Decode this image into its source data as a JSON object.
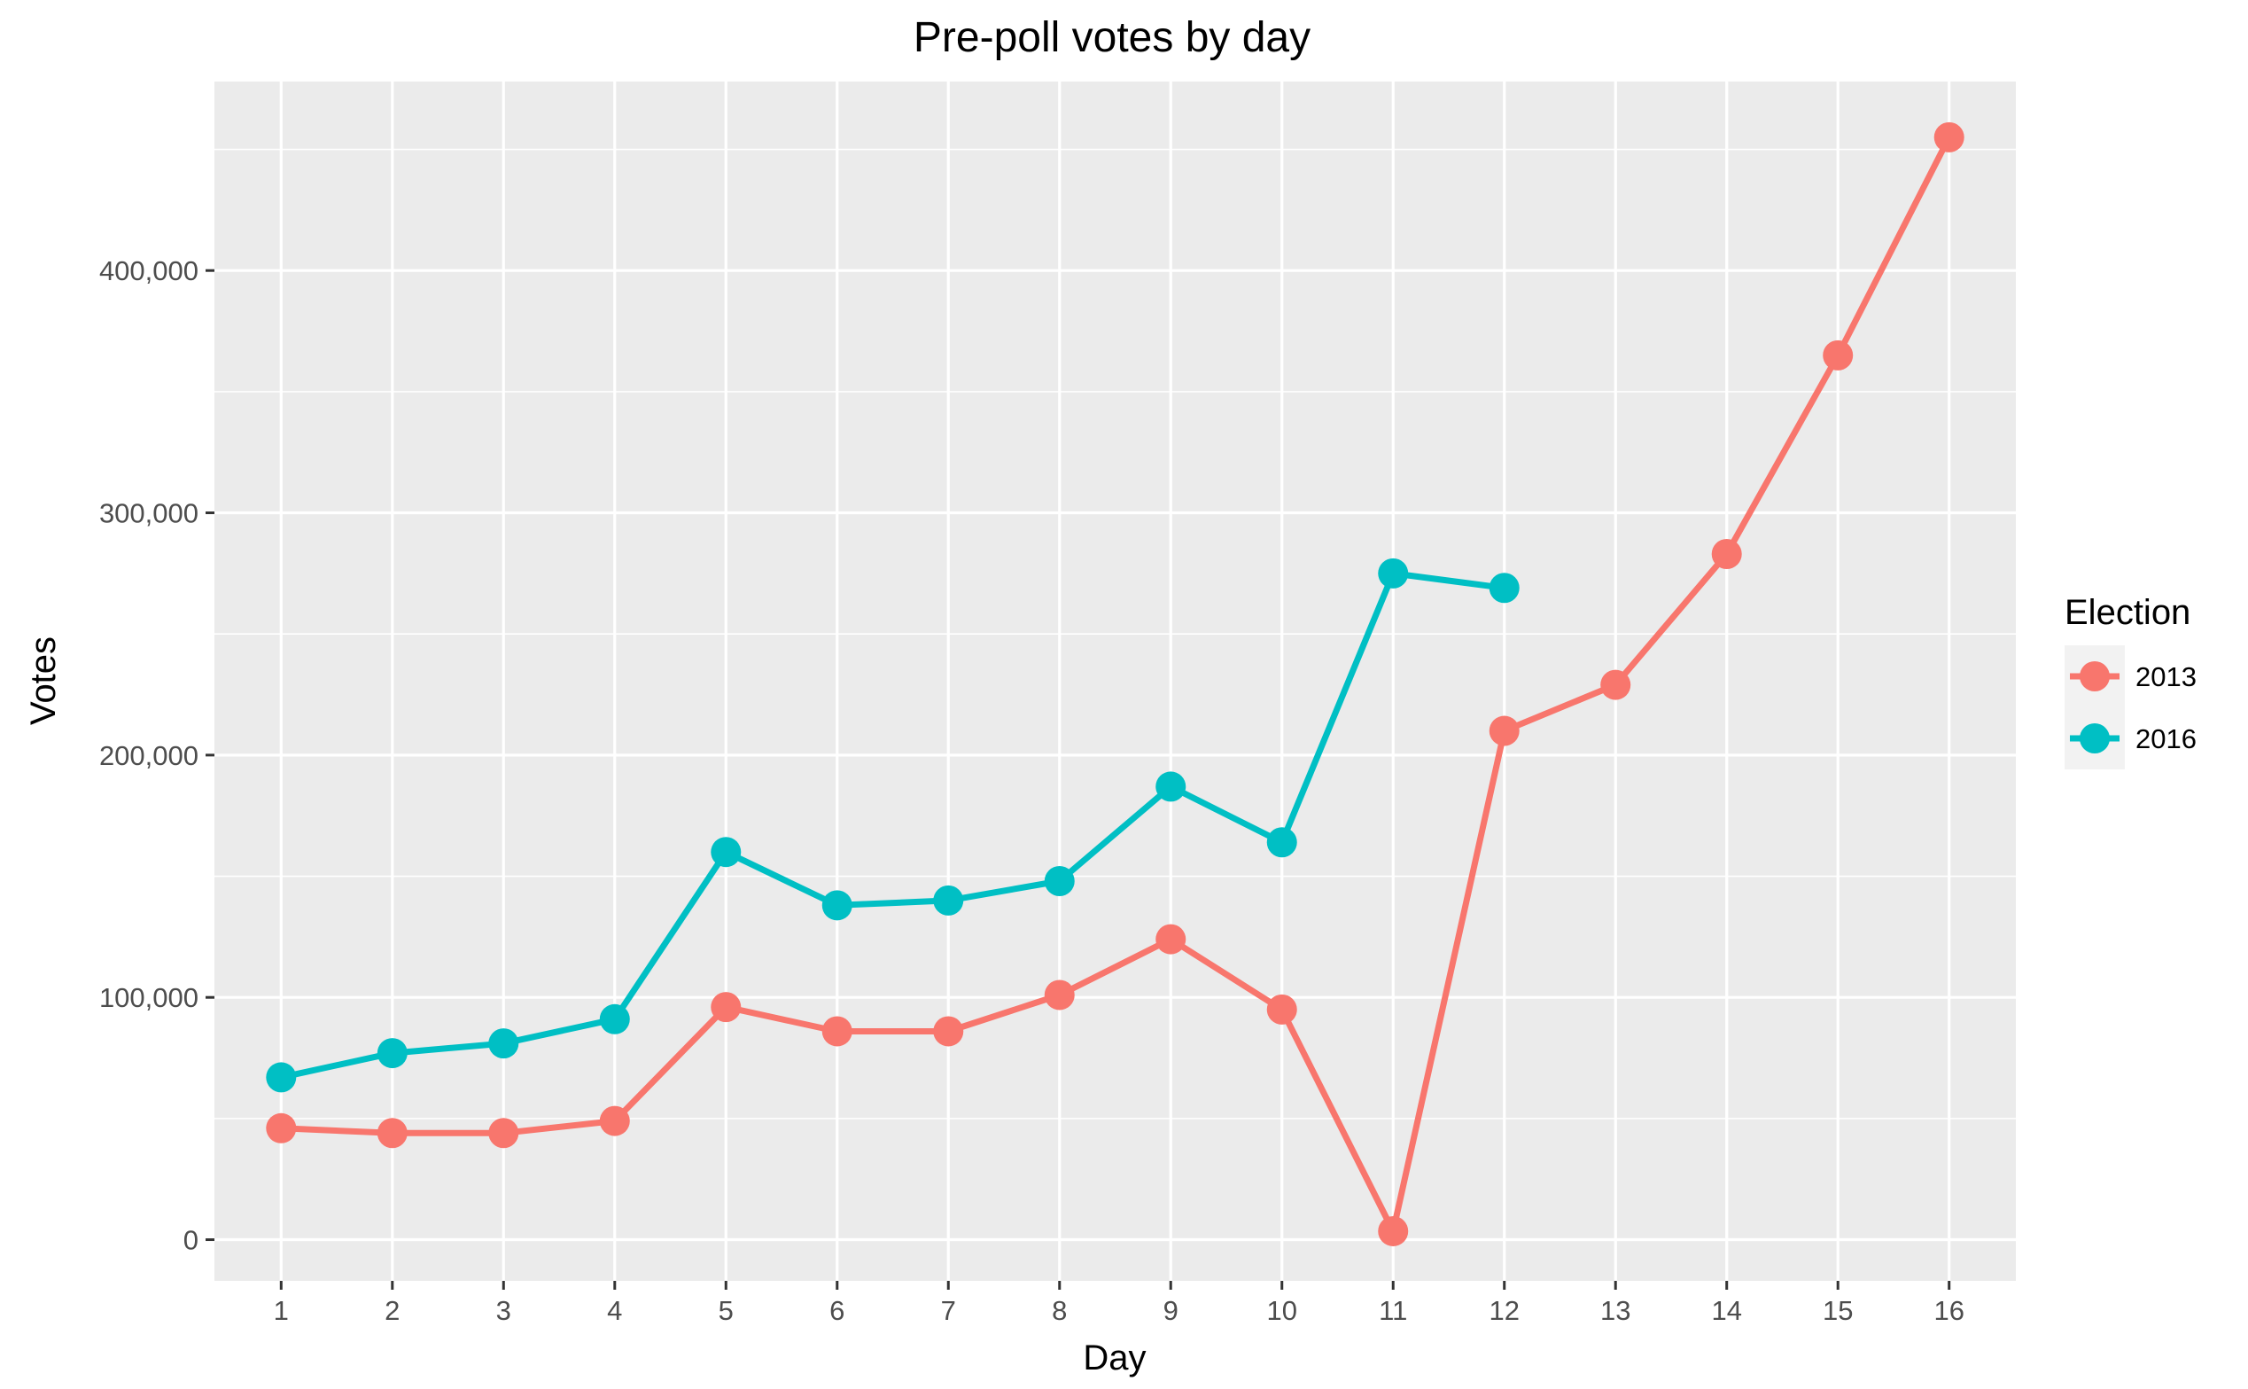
{
  "chart_data": {
    "type": "line",
    "title": "Pre-poll votes by day",
    "xlabel": "Day",
    "ylabel": "Votes",
    "x": [
      1,
      2,
      3,
      4,
      5,
      6,
      7,
      8,
      9,
      10,
      11,
      12,
      13,
      14,
      15,
      16
    ],
    "x_ticks": [
      "1",
      "2",
      "3",
      "4",
      "5",
      "6",
      "7",
      "8",
      "9",
      "10",
      "11",
      "12",
      "13",
      "14",
      "15",
      "16"
    ],
    "xlim": [
      0.4,
      16.6
    ],
    "ylim": [
      -17000,
      478000
    ],
    "y_ticks": [
      0,
      100000,
      200000,
      300000,
      400000
    ],
    "y_tick_labels": [
      "0",
      "100,000",
      "200,000",
      "300,000",
      "400,000"
    ],
    "grid": true,
    "legend": {
      "title": "Election",
      "position": "right"
    },
    "series": [
      {
        "name": "2013",
        "color": "#F8766D",
        "x": [
          1,
          2,
          3,
          4,
          5,
          6,
          7,
          8,
          9,
          10,
          11,
          12,
          13,
          14,
          15,
          16
        ],
        "values": [
          46000,
          44000,
          44000,
          49000,
          96000,
          86000,
          86000,
          101000,
          124000,
          95000,
          3500,
          210000,
          229000,
          283000,
          365000,
          455000
        ]
      },
      {
        "name": "2016",
        "color": "#00BFC4",
        "x": [
          1,
          2,
          3,
          4,
          5,
          6,
          7,
          8,
          9,
          10,
          11,
          12
        ],
        "values": [
          67000,
          77000,
          81000,
          91000,
          160000,
          138000,
          140000,
          148000,
          187000,
          164000,
          275000,
          269000
        ]
      }
    ]
  }
}
